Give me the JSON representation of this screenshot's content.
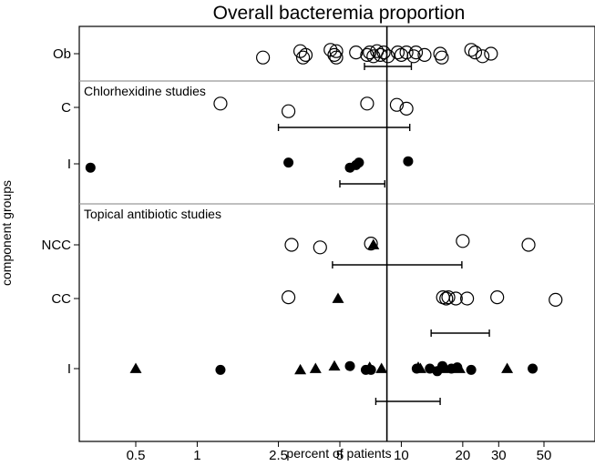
{
  "chart_data": {
    "type": "scatter",
    "title": "Overall bacteremia proportion",
    "xlabel": "percent of patients",
    "ylabel": "component groups",
    "x_scale": "log",
    "xlim": [
      0.25,
      60
    ],
    "x_ticks": [
      0.5,
      1,
      2.5,
      5,
      10,
      20,
      30,
      50
    ],
    "x_tick_labels": [
      "0.5",
      "1",
      "2.5",
      "5",
      "10",
      "20",
      "30",
      "50"
    ],
    "reference_line": 8.5,
    "sections": [
      {
        "id": "ob",
        "label": ""
      },
      {
        "id": "chlorhexidine",
        "label": "Chlorhexidine studies"
      },
      {
        "id": "topical",
        "label": "Topical antibiotic studies"
      }
    ],
    "groups": [
      {
        "name": "Ob",
        "section": "ob",
        "summary_ci": [
          6.6,
          11.2
        ],
        "points": [
          {
            "marker": "open-circle",
            "x": 2.1,
            "jitter": 0.3
          },
          {
            "marker": "open-circle",
            "x": 3.2,
            "jitter": -0.2
          },
          {
            "marker": "open-circle",
            "x": 3.4,
            "jitter": 0.1
          },
          {
            "marker": "open-circle",
            "x": 3.3,
            "jitter": 0.3
          },
          {
            "marker": "open-circle",
            "x": 4.5,
            "jitter": -0.3
          },
          {
            "marker": "open-circle",
            "x": 4.8,
            "jitter": -0.2
          },
          {
            "marker": "open-circle",
            "x": 4.7,
            "jitter": 0.1
          },
          {
            "marker": "open-circle",
            "x": 4.8,
            "jitter": 0.3
          },
          {
            "marker": "open-circle",
            "x": 6.0,
            "jitter": -0.1
          },
          {
            "marker": "open-circle",
            "x": 6.8,
            "jitter": 0.1
          },
          {
            "marker": "open-circle",
            "x": 7.0,
            "jitter": -0.1
          },
          {
            "marker": "open-circle",
            "x": 7.3,
            "jitter": 0.2
          },
          {
            "marker": "open-circle",
            "x": 7.6,
            "jitter": -0.2
          },
          {
            "marker": "open-circle",
            "x": 7.9,
            "jitter": 0.1
          },
          {
            "marker": "open-circle",
            "x": 8.2,
            "jitter": -0.1
          },
          {
            "marker": "open-circle",
            "x": 8.6,
            "jitter": 0.2
          },
          {
            "marker": "open-circle",
            "x": 9.6,
            "jitter": -0.1
          },
          {
            "marker": "open-circle",
            "x": 10.0,
            "jitter": 0.1
          },
          {
            "marker": "open-circle",
            "x": 10.6,
            "jitter": -0.1
          },
          {
            "marker": "open-circle",
            "x": 11.5,
            "jitter": 0.2
          },
          {
            "marker": "open-circle",
            "x": 11.8,
            "jitter": -0.1
          },
          {
            "marker": "open-circle",
            "x": 13.0,
            "jitter": 0.1
          },
          {
            "marker": "open-circle",
            "x": 15.5,
            "jitter": 0.0
          },
          {
            "marker": "open-circle",
            "x": 15.8,
            "jitter": 0.3
          },
          {
            "marker": "open-circle",
            "x": 22.0,
            "jitter": -0.3
          },
          {
            "marker": "open-circle",
            "x": 23.0,
            "jitter": -0.1
          },
          {
            "marker": "open-circle",
            "x": 25.0,
            "jitter": 0.2
          },
          {
            "marker": "open-circle",
            "x": 27.5,
            "jitter": 0.0
          }
        ]
      },
      {
        "name": "C",
        "section": "chlorhexidine",
        "summary_ci": [
          2.5,
          11.0
        ],
        "points": [
          {
            "marker": "open-circle",
            "x": 1.3,
            "jitter": -0.3
          },
          {
            "marker": "open-circle",
            "x": 2.8,
            "jitter": 0.3
          },
          {
            "marker": "open-circle",
            "x": 6.8,
            "jitter": -0.3
          },
          {
            "marker": "open-circle",
            "x": 9.5,
            "jitter": -0.2
          },
          {
            "marker": "open-circle",
            "x": 10.6,
            "jitter": 0.1
          }
        ]
      },
      {
        "name": "I",
        "section": "chlorhexidine",
        "summary_ci": [
          5.0,
          8.3
        ],
        "points": [
          {
            "marker": "filled-circle",
            "x": 0.3,
            "jitter": 0.3
          },
          {
            "marker": "filled-circle",
            "x": 2.8,
            "jitter": -0.1
          },
          {
            "marker": "filled-circle",
            "x": 5.6,
            "jitter": 0.3
          },
          {
            "marker": "filled-circle",
            "x": 6.0,
            "jitter": 0.1
          },
          {
            "marker": "filled-circle",
            "x": 6.2,
            "jitter": -0.1
          },
          {
            "marker": "filled-circle",
            "x": 10.8,
            "jitter": -0.2
          }
        ]
      },
      {
        "name": "NCC",
        "section": "topical",
        "summary_ci": [
          4.6,
          19.8
        ],
        "points": [
          {
            "marker": "open-circle",
            "x": 2.9,
            "jitter": 0.0
          },
          {
            "marker": "open-circle",
            "x": 4.0,
            "jitter": 0.2
          },
          {
            "marker": "open-circle",
            "x": 7.1,
            "jitter": -0.1
          },
          {
            "marker": "filled-triangle",
            "x": 7.3,
            "jitter": 0.0
          },
          {
            "marker": "open-circle",
            "x": 20.0,
            "jitter": -0.3
          },
          {
            "marker": "open-circle",
            "x": 42.0,
            "jitter": 0.0
          }
        ]
      },
      {
        "name": "CC",
        "section": "topical",
        "summary_ci": [
          14.0,
          27.0
        ],
        "points": [
          {
            "marker": "open-circle",
            "x": 2.8,
            "jitter": -0.1
          },
          {
            "marker": "filled-triangle",
            "x": 4.9,
            "jitter": 0.0
          },
          {
            "marker": "open-circle",
            "x": 16.0,
            "jitter": -0.1
          },
          {
            "marker": "open-circle",
            "x": 16.6,
            "jitter": 0.0
          },
          {
            "marker": "open-circle",
            "x": 17.0,
            "jitter": -0.1
          },
          {
            "marker": "open-circle",
            "x": 18.5,
            "jitter": 0.0
          },
          {
            "marker": "open-circle",
            "x": 21.0,
            "jitter": 0.0
          },
          {
            "marker": "open-circle",
            "x": 29.5,
            "jitter": -0.1
          },
          {
            "marker": "open-circle",
            "x": 57.0,
            "jitter": 0.1
          }
        ]
      },
      {
        "name": "I",
        "section": "topical",
        "summary_ci": [
          7.5,
          15.5
        ],
        "points": [
          {
            "marker": "filled-triangle",
            "x": 0.5,
            "jitter": 0.0
          },
          {
            "marker": "filled-circle",
            "x": 1.3,
            "jitter": 0.1
          },
          {
            "marker": "filled-triangle",
            "x": 3.2,
            "jitter": 0.1
          },
          {
            "marker": "filled-triangle",
            "x": 3.8,
            "jitter": 0.0
          },
          {
            "marker": "filled-triangle",
            "x": 4.7,
            "jitter": -0.2
          },
          {
            "marker": "filled-circle",
            "x": 5.6,
            "jitter": -0.2
          },
          {
            "marker": "filled-circle",
            "x": 6.7,
            "jitter": 0.1
          },
          {
            "marker": "filled-triangle",
            "x": 7.0,
            "jitter": -0.1
          },
          {
            "marker": "filled-circle",
            "x": 7.1,
            "jitter": 0.1
          },
          {
            "marker": "filled-triangle",
            "x": 8.0,
            "jitter": 0.0
          },
          {
            "marker": "filled-circle",
            "x": 11.9,
            "jitter": 0.0
          },
          {
            "marker": "filled-triangle",
            "x": 12.4,
            "jitter": 0.0
          },
          {
            "marker": "filled-triangle",
            "x": 12.1,
            "jitter": -0.1
          },
          {
            "marker": "filled-circle",
            "x": 13.8,
            "jitter": 0.0
          },
          {
            "marker": "filled-circle",
            "x": 15.0,
            "jitter": 0.2
          },
          {
            "marker": "filled-circle",
            "x": 15.9,
            "jitter": -0.2
          },
          {
            "marker": "filled-triangle",
            "x": 16.0,
            "jitter": 0.0
          },
          {
            "marker": "filled-circle",
            "x": 17.6,
            "jitter": 0.0
          },
          {
            "marker": "filled-circle",
            "x": 18.8,
            "jitter": -0.1
          },
          {
            "marker": "filled-triangle",
            "x": 19.3,
            "jitter": 0.0
          },
          {
            "marker": "filled-circle",
            "x": 22.0,
            "jitter": 0.1
          },
          {
            "marker": "filled-triangle",
            "x": 33.0,
            "jitter": 0.0
          },
          {
            "marker": "filled-circle",
            "x": 44.0,
            "jitter": 0.0
          }
        ]
      }
    ]
  }
}
